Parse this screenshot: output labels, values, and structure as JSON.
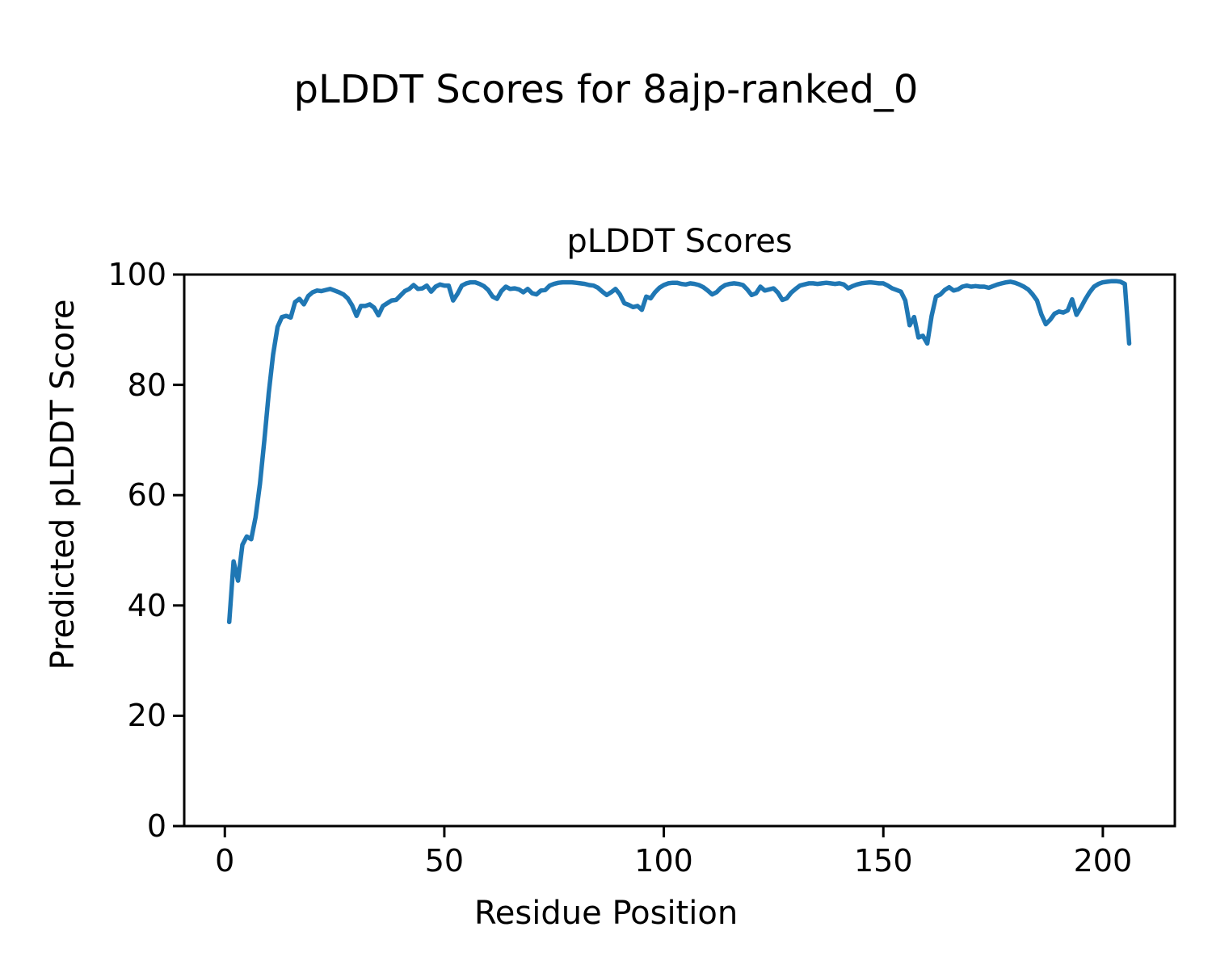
{
  "figure": {
    "suptitle": "pLDDT Scores for 8ajp-ranked_0",
    "axes_title": "pLDDT Scores",
    "xlabel": "Residue Position",
    "ylabel": "Predicted pLDDT Score"
  },
  "chart_data": {
    "type": "line",
    "suptitle": "pLDDT Scores for 8ajp-ranked_0",
    "title": "pLDDT Scores",
    "xlabel": "Residue Position",
    "ylabel": "Predicted pLDDT Score",
    "xlim": [
      -9.25,
      216.4
    ],
    "ylim": [
      0,
      100
    ],
    "xticks": [
      0,
      50,
      100,
      150,
      200
    ],
    "yticks": [
      0,
      20,
      40,
      60,
      80,
      100
    ],
    "grid": false,
    "legend": "none",
    "line_color": "#1f77b4",
    "series": [
      {
        "name": "pLDDT",
        "x_start": 1,
        "x_step": 1,
        "values": [
          37,
          48,
          44.5,
          51,
          52.5,
          52,
          56,
          62,
          70,
          78.5,
          85.5,
          90.5,
          92.3,
          92.5,
          92.2,
          95,
          95.6,
          94.6,
          96.1,
          96.8,
          97.1,
          97,
          97.2,
          97.4,
          97.1,
          96.8,
          96.4,
          95.7,
          94.4,
          92.5,
          94.3,
          94.3,
          94.6,
          94,
          92.6,
          94.3,
          94.8,
          95.3,
          95.4,
          96.2,
          97,
          97.4,
          98.1,
          97.4,
          97.5,
          98,
          96.9,
          97.8,
          98.2,
          98,
          98,
          95.3,
          96.5,
          98,
          98.4,
          98.6,
          98.6,
          98.3,
          97.9,
          97.2,
          96,
          95.6,
          97,
          97.8,
          97.4,
          97.5,
          97.3,
          96.8,
          97.4,
          96.6,
          96.4,
          97.1,
          97.2,
          98,
          98.3,
          98.5,
          98.6,
          98.6,
          98.6,
          98.5,
          98.4,
          98.3,
          98.1,
          98,
          97.6,
          96.9,
          96.3,
          96.8,
          97.4,
          96.4,
          94.8,
          94.5,
          94.1,
          94.3,
          93.6,
          96,
          95.7,
          96.8,
          97.6,
          98.1,
          98.4,
          98.5,
          98.5,
          98.3,
          98.2,
          98.4,
          98.3,
          98.1,
          97.7,
          97.1,
          96.4,
          96.8,
          97.6,
          98.1,
          98.3,
          98.4,
          98.3,
          98.1,
          97.3,
          96.3,
          96.6,
          97.8,
          97.1,
          97.3,
          97.5,
          96.7,
          95.4,
          95.7,
          96.7,
          97.4,
          98,
          98.2,
          98.4,
          98.4,
          98.3,
          98.4,
          98.5,
          98.4,
          98.3,
          98.4,
          98.2,
          97.5,
          97.9,
          98.2,
          98.4,
          98.5,
          98.6,
          98.5,
          98.4,
          98.4,
          98,
          97.5,
          97.2,
          96.9,
          95.3,
          90.8,
          92.3,
          88.6,
          88.9,
          87.5,
          92.5,
          96,
          96.4,
          97.2,
          97.7,
          97.1,
          97.3,
          97.8,
          98,
          97.8,
          97.9,
          97.8,
          97.8,
          97.6,
          97.9,
          98.2,
          98.4,
          98.6,
          98.7,
          98.5,
          98.2,
          97.8,
          97.3,
          96.4,
          95.3,
          92.8,
          91,
          91.8,
          92.9,
          93.3,
          93.1,
          93.5,
          95.5,
          92.7,
          94,
          95.5,
          96.8,
          97.8,
          98.3,
          98.6,
          98.7,
          98.8,
          98.8,
          98.7,
          98.3,
          87.5
        ]
      }
    ]
  }
}
